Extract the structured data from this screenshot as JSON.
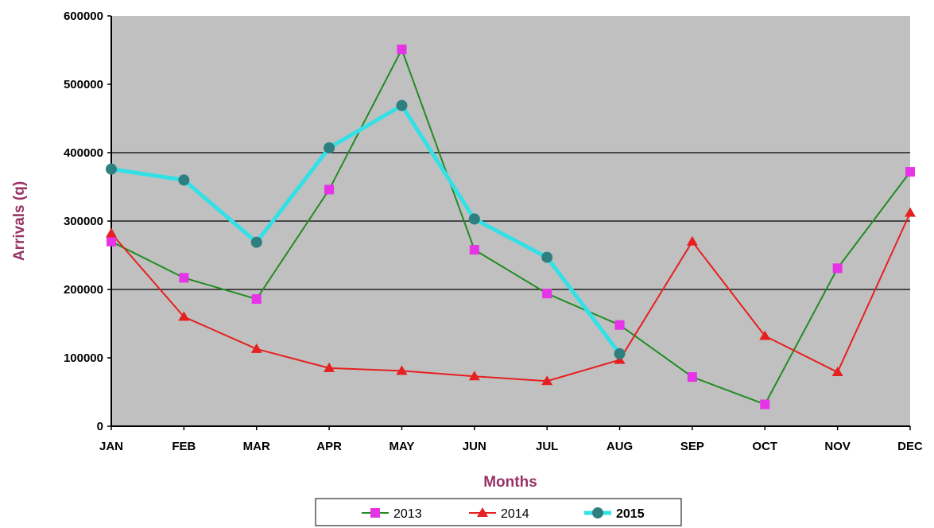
{
  "chart_data": {
    "type": "line",
    "categories": [
      "JAN",
      "FEB",
      "MAR",
      "APR",
      "MAY",
      "JUN",
      "JUL",
      "AUG",
      "SEP",
      "OCT",
      "NOV",
      "DEC"
    ],
    "xlabel": "Months",
    "ylabel": "Arrivals (q)",
    "ylim": [
      0,
      600000
    ],
    "yticks": [
      "0",
      "100000",
      "200000",
      "300000",
      "400000",
      "500000",
      "600000"
    ],
    "gridlines": [
      200000,
      300000,
      400000
    ],
    "plot_background": "#C0C0C0",
    "axis_title_color": "#993366",
    "legend_position": "bottom",
    "series": [
      {
        "name": "2013",
        "values": [
          270000,
          217000,
          186000,
          346000,
          551000,
          258000,
          194000,
          148000,
          72000,
          32000,
          231000,
          372000
        ],
        "line_color": "#228B22",
        "marker_color": "#E633E6",
        "marker": "square"
      },
      {
        "name": "2014",
        "values": [
          282000,
          160000,
          113000,
          85000,
          81000,
          73000,
          66000,
          97000,
          270000,
          132000,
          79000,
          312000
        ],
        "line_color": "#E62020",
        "marker_color": "#E62020",
        "marker": "triangle"
      },
      {
        "name": "2015",
        "values": [
          376000,
          360000,
          269000,
          407000,
          469000,
          303000,
          247000,
          106000,
          null,
          null,
          null,
          null
        ],
        "line_color": "#33E0E6",
        "marker_color": "#2E7F7F",
        "marker": "circle"
      }
    ]
  }
}
